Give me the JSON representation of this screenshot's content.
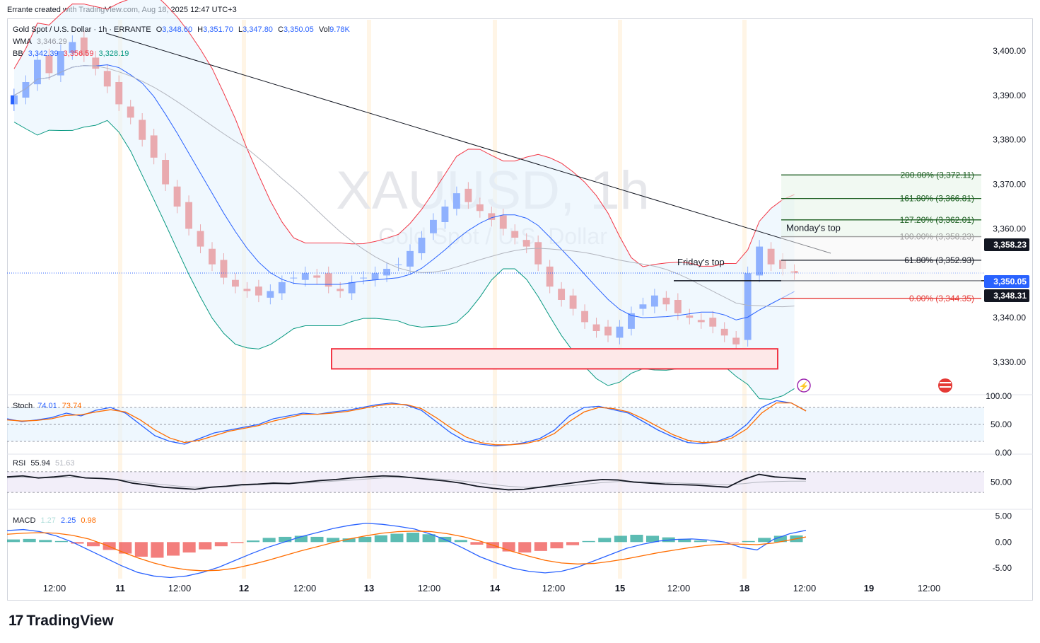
{
  "header": {
    "created_by": "Errante created with TradingView.com, Aug 18, 2025 12:47 UTC+3"
  },
  "watermark": {
    "symbol": "XAUUSD, 1h",
    "name": "Gold Spot / U.S. Dollar"
  },
  "legend": {
    "title": "Gold Spot / U.S. Dollar · 1h · ERRANTE",
    "o_label": "O",
    "o": "3,348.60",
    "h_label": "H",
    "h": "3,351.70",
    "l_label": "L",
    "l": "3,347.80",
    "c_label": "C",
    "c": "3,350.05",
    "vol_label": "Vol",
    "vol": "9.78K",
    "wma_label": "WMA",
    "wma": "3,346.29",
    "bb_label": "BB",
    "bb1": "3,342.39",
    "bb2": "3,356.59",
    "bb3": "3,328.19"
  },
  "stoch_legend": {
    "label": "Stoch",
    "k": "74.01",
    "d": "73.74"
  },
  "rsi_legend": {
    "label": "RSI",
    "v": "55.94",
    "ma": "51.63"
  },
  "macd_legend": {
    "label": "MACD",
    "hist": "1.27",
    "macd": "2.25",
    "signal": "0.98"
  },
  "annotations": {
    "fridays_top": "Friday's top",
    "mondays_top": "Monday's top"
  },
  "price_tags": [
    {
      "value": "3,358.23",
      "bg": "#131722"
    },
    {
      "value": "3,350.05",
      "bg": "#2962ff"
    },
    {
      "value": "3,348.31",
      "bg": "#131722"
    }
  ],
  "fib_levels": [
    {
      "label": "200.00% (3,372.11)",
      "color": "#1b5e20",
      "price": 3372.11
    },
    {
      "label": "161.80% (3,366.81)",
      "color": "#1b5e20",
      "price": 3366.81
    },
    {
      "label": "127.20% (3,362.01)",
      "color": "#1b5e20",
      "price": 3362.01
    },
    {
      "label": "100.00% (3,358.23)",
      "color": "#9e9e9e",
      "price": 3358.23
    },
    {
      "label": "61.80% (3,352.93)",
      "color": "#131722",
      "price": 3352.93
    },
    {
      "label": "0.00% (3,344.35)",
      "color": "#e53935",
      "price": 3344.35
    }
  ],
  "colors": {
    "up": "#2962ff",
    "down": "#ef5350",
    "bb_fill": "#e3f2fd",
    "zone": "#f23645"
  },
  "logo": {
    "text": "TradingView",
    "mark": "17"
  },
  "chart_data": [
    {
      "type": "candlestick",
      "title": "Gold Spot / U.S. Dollar · 1h · ERRANTE",
      "ylim": [
        3323,
        3407
      ],
      "y_ticks": [
        "3,400.00",
        "3,390.00",
        "3,380.00",
        "3,370.00",
        "3,360.00",
        "3,340.00",
        "3,330.00"
      ],
      "x_ticks": [
        "12:00",
        "11",
        "12:00",
        "12",
        "12:00",
        "13",
        "12:00",
        "14",
        "12:00",
        "15",
        "12:00",
        "18",
        "12:00",
        "19",
        "12:00"
      ],
      "bars_approx_close": [
        3390,
        3393,
        3398,
        3395,
        3400,
        3402,
        3399,
        3396,
        3392,
        3388,
        3385,
        3380,
        3376,
        3370,
        3365,
        3360,
        3356,
        3352,
        3349,
        3347,
        3346,
        3345,
        3346,
        3348,
        3349,
        3350,
        3349,
        3347,
        3346,
        3348,
        3349,
        3350,
        3351,
        3352,
        3355,
        3358,
        3362,
        3365,
        3368,
        3366,
        3364,
        3362,
        3360,
        3358,
        3356,
        3352,
        3347,
        3344,
        3342,
        3339,
        3337,
        3336,
        3338,
        3341,
        3343,
        3345,
        3343,
        3341,
        3340,
        3339,
        3338,
        3336,
        3334,
        3350,
        3356,
        3352,
        3351,
        3350
      ],
      "support_zone": [
        3328.5,
        3333
      ],
      "current_price": 3350.05
    },
    {
      "type": "line",
      "title": "Stoch",
      "ylim": [
        0,
        100
      ],
      "y_ticks": [
        "100.00",
        "50.00",
        "0.00"
      ],
      "series": [
        {
          "name": "%K",
          "values": [
            60,
            55,
            58,
            62,
            70,
            65,
            75,
            80,
            70,
            50,
            30,
            20,
            15,
            25,
            35,
            40,
            45,
            50,
            60,
            65,
            70,
            68,
            72,
            75,
            80,
            85,
            88,
            84,
            75,
            55,
            35,
            20,
            15,
            12,
            14,
            18,
            25,
            40,
            65,
            80,
            82,
            76,
            70,
            55,
            40,
            28,
            18,
            16,
            20,
            30,
            50,
            80,
            92,
            88,
            74
          ]
        },
        {
          "name": "%D",
          "values": [
            58,
            56,
            57,
            60,
            66,
            67,
            72,
            76,
            72,
            58,
            40,
            26,
            18,
            22,
            30,
            38,
            43,
            48,
            56,
            62,
            68,
            68,
            70,
            73,
            78,
            83,
            86,
            85,
            78,
            62,
            44,
            28,
            18,
            14,
            14,
            16,
            22,
            34,
            55,
            72,
            80,
            78,
            72,
            60,
            46,
            32,
            22,
            18,
            19,
            26,
            42,
            70,
            88,
            88,
            73.74
          ]
        }
      ]
    },
    {
      "type": "line",
      "title": "RSI",
      "ylim": [
        0,
        100
      ],
      "y_ticks": [
        "50.00"
      ],
      "series": [
        {
          "name": "RSI",
          "values": [
            60,
            62,
            58,
            60,
            63,
            58,
            57,
            55,
            48,
            44,
            40,
            38,
            36,
            40,
            42,
            45,
            46,
            48,
            47,
            50,
            53,
            55,
            58,
            60,
            62,
            61,
            58,
            55,
            52,
            48,
            42,
            38,
            35,
            36,
            40,
            44,
            48,
            52,
            55,
            54,
            50,
            48,
            46,
            45,
            44,
            42,
            40,
            55,
            65,
            60,
            58,
            55.94
          ]
        },
        {
          "name": "RSI MA",
          "values": [
            58,
            59,
            58,
            58,
            59,
            58,
            57,
            55,
            52,
            48,
            45,
            42,
            40,
            40,
            41,
            43,
            45,
            46,
            47,
            48,
            50,
            52,
            54,
            56,
            58,
            59,
            58,
            57,
            55,
            52,
            49,
            45,
            42,
            40,
            40,
            41,
            43,
            46,
            49,
            51,
            51,
            50,
            49,
            48,
            47,
            46,
            45,
            47,
            50,
            51,
            51.63,
            51.63
          ]
        }
      ]
    },
    {
      "type": "bar",
      "title": "MACD",
      "ylim": [
        -7,
        6
      ],
      "y_ticks": [
        "5.00",
        "0.00",
        "-5.00"
      ],
      "histogram": [
        0.5,
        0.6,
        0.4,
        0.2,
        -0.3,
        -0.8,
        -1.5,
        -2.2,
        -2.8,
        -3.0,
        -2.6,
        -2.0,
        -1.4,
        -0.8,
        -0.2,
        0.3,
        0.8,
        1.0,
        1.2,
        1.0,
        0.8,
        0.7,
        1.0,
        1.3,
        1.6,
        1.8,
        1.5,
        1.0,
        0.4,
        -0.5,
        -1.2,
        -1.8,
        -2.0,
        -1.7,
        -1.2,
        -0.6,
        0.2,
        0.8,
        1.2,
        1.4,
        1.2,
        0.9,
        0.6,
        0.3,
        0.1,
        -0.1,
        0.2,
        0.8,
        1.2,
        1.27
      ],
      "series": [
        {
          "name": "MACD",
          "values": [
            2.2,
            2.4,
            2.0,
            1.2,
            0.0,
            -1.5,
            -3.0,
            -4.5,
            -5.8,
            -6.5,
            -6.8,
            -6.5,
            -5.8,
            -4.8,
            -3.5,
            -2.2,
            -1.0,
            0.0,
            1.0,
            1.8,
            2.6,
            3.2,
            3.6,
            3.4,
            3.0,
            2.5,
            1.5,
            0.3,
            -1.2,
            -2.8,
            -4.0,
            -5.0,
            -5.6,
            -5.9,
            -5.6,
            -4.8,
            -3.6,
            -2.4,
            -1.2,
            -0.4,
            0.2,
            0.5,
            0.6,
            0.4,
            0.0,
            -1.0,
            -1.5,
            0.5,
            1.6,
            2.25
          ]
        },
        {
          "name": "Signal",
          "values": [
            1.5,
            1.7,
            1.8,
            1.7,
            1.3,
            0.6,
            -0.5,
            -1.8,
            -3.0,
            -4.0,
            -4.8,
            -5.3,
            -5.5,
            -5.4,
            -5.0,
            -4.3,
            -3.5,
            -2.6,
            -1.7,
            -0.9,
            -0.1,
            0.6,
            1.2,
            1.7,
            2.0,
            2.1,
            2.0,
            1.6,
            1.0,
            0.2,
            -0.8,
            -1.8,
            -2.7,
            -3.5,
            -4.0,
            -4.2,
            -4.1,
            -3.7,
            -3.2,
            -2.6,
            -2.0,
            -1.5,
            -1.0,
            -0.6,
            -0.4,
            -0.4,
            -0.5,
            -0.2,
            0.4,
            0.98
          ]
        }
      ]
    }
  ]
}
